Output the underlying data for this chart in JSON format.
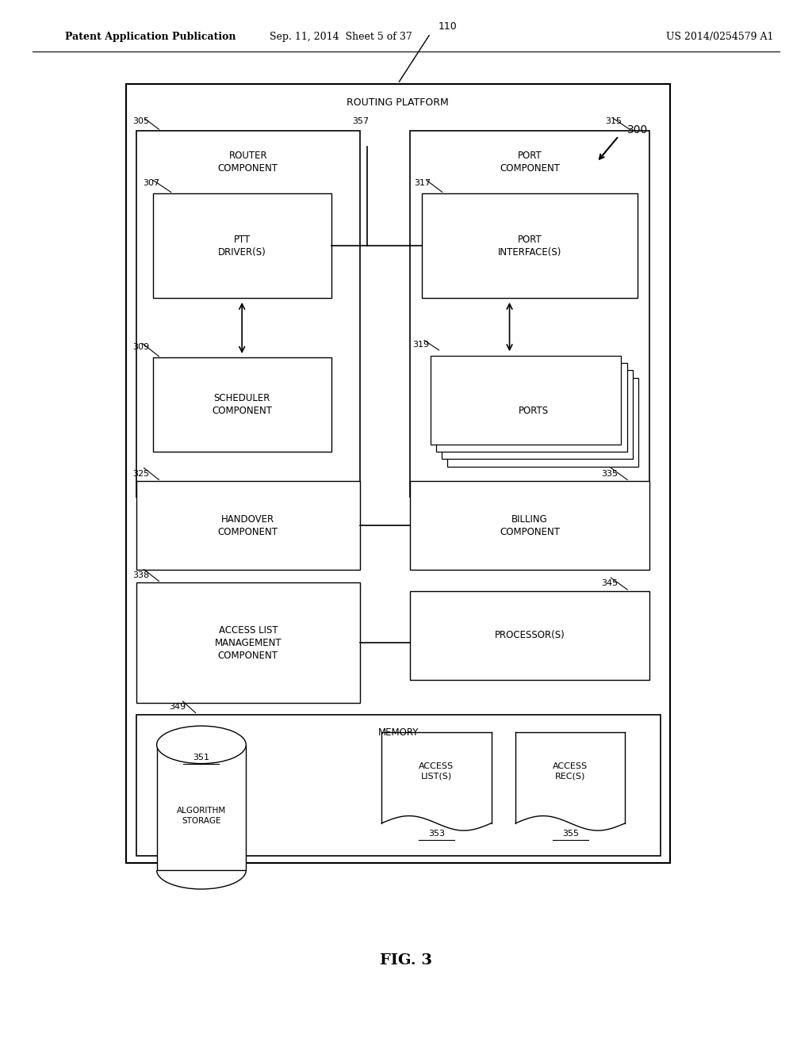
{
  "bg_color": "#ffffff",
  "header_left": "Patent Application Publication",
  "header_mid": "Sep. 11, 2014  Sheet 5 of 37",
  "header_right": "US 2014/0254579 A1",
  "fig_label": "FIG. 3"
}
